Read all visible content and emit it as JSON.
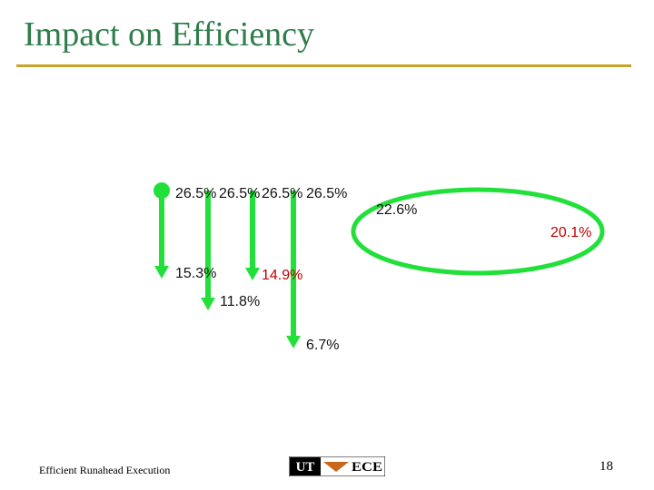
{
  "slide": {
    "title": "Impact on Efficiency",
    "footer_text": "Efficient Runahead Execution",
    "page_number": "18",
    "logo_text": {
      "left": "UT",
      "right": "ECE"
    }
  },
  "colors": {
    "title": "#2e7d4a",
    "rule": "#c8a42a",
    "arrow": "#22e03a",
    "ellipse": "#22e03a",
    "text_black": "#111111",
    "text_red": "#c00000"
  },
  "annotations": {
    "baseline_1": "26.5%",
    "baseline_2": "26.5%",
    "baseline_3": "26.5%",
    "baseline_4": "26.5%",
    "value_a": "15.3%",
    "value_b": "11.8%",
    "value_c": "14.9%",
    "value_d": "6.7%",
    "value_e": "22.6%",
    "value_f": "20.1%"
  }
}
